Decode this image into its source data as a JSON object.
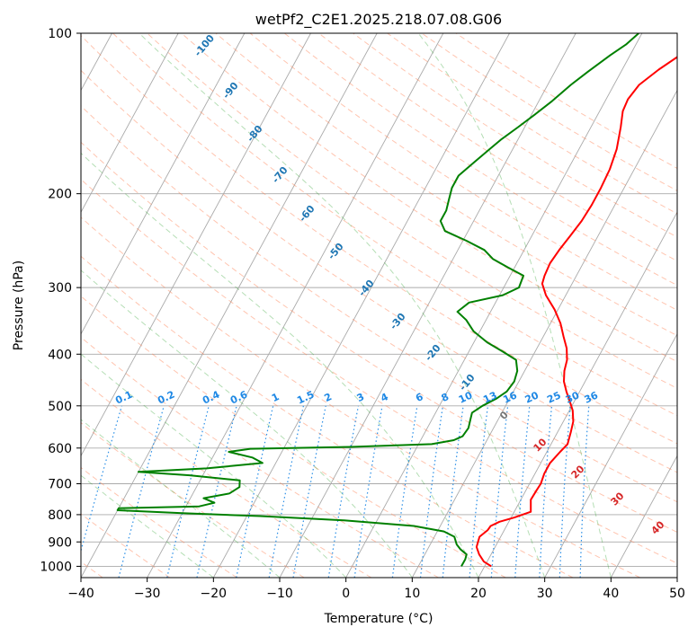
{
  "chart_data": {
    "type": "line",
    "title": "wetPf2_C2E1.2025.218.07.08.G06",
    "xlabel": "Temperature (°C)",
    "ylabel": "Pressure (hPa)",
    "xlim": [
      -40,
      50
    ],
    "ylim": [
      1050,
      100
    ],
    "y_scale": "log",
    "grid": true,
    "x_ticks": [
      -40,
      -30,
      -20,
      -10,
      0,
      10,
      20,
      30,
      40,
      50
    ],
    "x_tick_labels": [
      "−40",
      "−30",
      "−20",
      "−10",
      "0",
      "10",
      "20",
      "30",
      "40",
      "50"
    ],
    "y_ticks": [
      1000,
      900,
      800,
      700,
      600,
      500,
      400,
      300,
      200,
      100
    ],
    "y_tick_labels": [
      "1000",
      "900",
      "800",
      "700",
      "600",
      "500",
      "400",
      "300",
      "200",
      "100"
    ],
    "series": [
      {
        "name": "temperature",
        "color": "#ff0000",
        "points": [
          [
            21.0,
            1000
          ],
          [
            19.5,
            980
          ],
          [
            18.2,
            950
          ],
          [
            17.2,
            920
          ],
          [
            17.0,
            900
          ],
          [
            16.8,
            880
          ],
          [
            17.5,
            855
          ],
          [
            17.6,
            840
          ],
          [
            18.6,
            825
          ],
          [
            20.5,
            810
          ],
          [
            22.5,
            790
          ],
          [
            22.0,
            770
          ],
          [
            21.5,
            750
          ],
          [
            21.6,
            720
          ],
          [
            21.7,
            700
          ],
          [
            21.4,
            670
          ],
          [
            21.4,
            640
          ],
          [
            22.0,
            610
          ],
          [
            22.5,
            590
          ],
          [
            22.0,
            560
          ],
          [
            21.5,
            535
          ],
          [
            20.5,
            510
          ],
          [
            19.3,
            490
          ],
          [
            18.0,
            470
          ],
          [
            16.8,
            450
          ],
          [
            16.0,
            430
          ],
          [
            15.5,
            410
          ],
          [
            14.5,
            390
          ],
          [
            13.0,
            370
          ],
          [
            11.5,
            350
          ],
          [
            9.5,
            330
          ],
          [
            7.0,
            310
          ],
          [
            5.5,
            295
          ],
          [
            5.2,
            285
          ],
          [
            5.0,
            270
          ],
          [
            5.3,
            255
          ],
          [
            5.8,
            240
          ],
          [
            6.3,
            225
          ],
          [
            6.5,
            210
          ],
          [
            6.5,
            195
          ],
          [
            6.3,
            180
          ],
          [
            5.7,
            165
          ],
          [
            4.5,
            150
          ],
          [
            3.5,
            140
          ],
          [
            3.3,
            133
          ],
          [
            3.8,
            125
          ],
          [
            5.5,
            117
          ],
          [
            7.5,
            110
          ],
          [
            9.2,
            105
          ],
          [
            10.6,
            100
          ]
        ]
      },
      {
        "name": "dewpoint",
        "color": "#008000",
        "points": [
          [
            16.5,
            1000
          ],
          [
            16.5,
            970
          ],
          [
            16.3,
            950
          ],
          [
            15.0,
            930
          ],
          [
            14.0,
            910
          ],
          [
            13.0,
            880
          ],
          [
            11.0,
            860
          ],
          [
            6.0,
            840
          ],
          [
            -5.0,
            820
          ],
          [
            -18.0,
            805
          ],
          [
            -30.0,
            795
          ],
          [
            -40.0,
            785
          ],
          [
            -40.0,
            778
          ],
          [
            -28.0,
            772
          ],
          [
            -26.0,
            760
          ],
          [
            -28.0,
            745
          ],
          [
            -24.5,
            730
          ],
          [
            -23.5,
            710
          ],
          [
            -24.0,
            690
          ],
          [
            -32.0,
            675
          ],
          [
            -40.0,
            665
          ],
          [
            -30.0,
            655
          ],
          [
            -22.0,
            640
          ],
          [
            -24.0,
            625
          ],
          [
            -28.0,
            610
          ],
          [
            -25.0,
            602
          ],
          [
            -10.0,
            597
          ],
          [
            2.0,
            590
          ],
          [
            5.0,
            580
          ],
          [
            6.0,
            570
          ],
          [
            6.2,
            550
          ],
          [
            5.8,
            530
          ],
          [
            5.5,
            515
          ],
          [
            6.5,
            500
          ],
          [
            8.0,
            485
          ],
          [
            9.0,
            470
          ],
          [
            9.3,
            450
          ],
          [
            8.9,
            430
          ],
          [
            7.8,
            410
          ],
          [
            5.0,
            395
          ],
          [
            2.0,
            380
          ],
          [
            -1.0,
            362
          ],
          [
            -3.0,
            345
          ],
          [
            -5.0,
            333
          ],
          [
            -4.0,
            320
          ],
          [
            0.5,
            310
          ],
          [
            2.3,
            300
          ],
          [
            2.0,
            285
          ],
          [
            -1.0,
            275
          ],
          [
            -4.0,
            265
          ],
          [
            -6.0,
            255
          ],
          [
            -9.5,
            245
          ],
          [
            -13.5,
            235
          ],
          [
            -15.0,
            225
          ],
          [
            -15.0,
            215
          ],
          [
            -15.5,
            205
          ],
          [
            -16.0,
            195
          ],
          [
            -16.0,
            185
          ],
          [
            -14.8,
            175
          ],
          [
            -13.5,
            165
          ],
          [
            -12.5,
            158
          ],
          [
            -11.0,
            150
          ],
          [
            -9.5,
            142
          ],
          [
            -8.0,
            134
          ],
          [
            -6.5,
            125
          ],
          [
            -5.0,
            118
          ],
          [
            -3.0,
            110
          ],
          [
            -1.5,
            105
          ],
          [
            -0.5,
            100
          ]
        ]
      }
    ],
    "dry_adiabat_labels": [
      "-100",
      "-90",
      "-80",
      "-70",
      "-60",
      "-50",
      "-40",
      "-30",
      "-20",
      "-10"
    ],
    "mixing_ratio_labels": [
      "0.1",
      "0.2",
      "0.4",
      "0.6",
      "1",
      "1.5",
      "2",
      "3",
      "4",
      "6",
      "8",
      "10",
      "13",
      "16",
      "20",
      "25",
      "30",
      "36"
    ],
    "moist_adiabat_labels": [
      "0",
      "10",
      "20",
      "30",
      "40"
    ]
  },
  "colors": {
    "temperature": "#ff0000",
    "dewpoint": "#008000",
    "isotherm": "#aaaaaa",
    "isobar": "#aaaaaa",
    "dry_adiabat": "#ff7f50",
    "moist_adiabat": "#2ca02c",
    "mixing_ratio": "#1e88e5",
    "dry_label": "#1f77b4",
    "moist_label": "#d62728"
  }
}
